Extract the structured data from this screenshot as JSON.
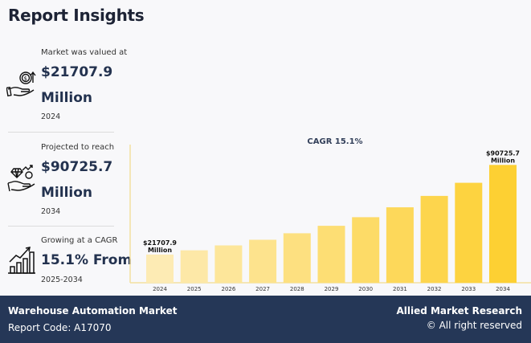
{
  "page": {
    "title": "Report Insights"
  },
  "stats": [
    {
      "label": "Market was valued at",
      "value_line1": "$21707.9",
      "value_line2": "Million",
      "year": "2024",
      "icon": "money-hand-growth-icon"
    },
    {
      "label": "Projected to reach",
      "value_line1": "$90725.7",
      "value_line2": "Million",
      "year": "2034",
      "icon": "diamond-coin-hand-icon"
    },
    {
      "label": "Growing at a CAGR",
      "value_line1": "15.1% From",
      "year": "2025-2034",
      "icon": "bar-growth-chart-icon"
    }
  ],
  "footer": {
    "market_name": "Warehouse Automation Market",
    "report_code": "Report Code: A17070",
    "company": "Allied Market Research",
    "rights": "© All right reserved"
  },
  "colors": {
    "title": "#1d2335",
    "value": "#23324f",
    "footer_bg": "#253757",
    "bar_light": "#fde9b0",
    "bar_dark": "#fdd033",
    "axis": "#f3dfa0"
  },
  "chart_data": {
    "type": "bar",
    "title": "CAGR 15.1%",
    "xlabel": "",
    "ylabel": "",
    "categories": [
      "2024",
      "2025",
      "2026",
      "2027",
      "2028",
      "2029",
      "2030",
      "2031",
      "2032",
      "2033",
      "2034"
    ],
    "values": [
      21707.9,
      24985.8,
      28758.6,
      33101.2,
      38099.5,
      43852.5,
      50474.3,
      58095.9,
      66868.4,
      76965.5,
      90725.7
    ],
    "data_labels": [
      {
        "category": "2024",
        "line1": "$21707.9",
        "line2": "Million"
      },
      {
        "category": "2034",
        "line1": "$90725.7",
        "line2": "Million"
      }
    ],
    "ylim": [
      0,
      100000
    ],
    "grid": false,
    "legend": "none"
  }
}
